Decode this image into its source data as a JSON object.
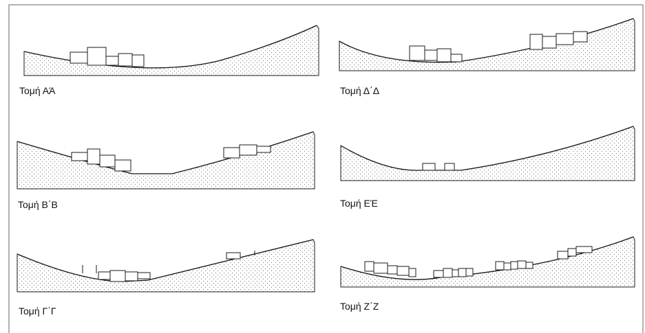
{
  "colors": {
    "line": "#1a1a1a",
    "stipple": "#7a7a7a",
    "border": "#555555",
    "background": "#ffffff"
  },
  "sections": [
    {
      "label": "Τομή ΑΆ"
    },
    {
      "label": "Τομή Δ΄Δ"
    },
    {
      "label": "Τομή Β΄Β"
    },
    {
      "label": "Τομή ΕΈ"
    },
    {
      "label": "Τομή Γ΄Γ"
    },
    {
      "label": "Τομή Ζ΄Ζ"
    }
  ]
}
